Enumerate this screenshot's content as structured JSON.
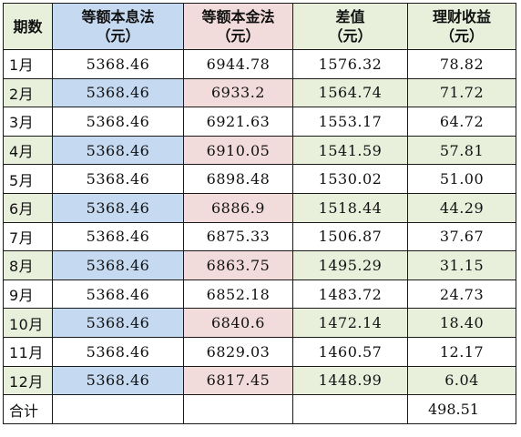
{
  "colors": {
    "col0_header": "#e8f0dc",
    "col1_header": "#c5d9f1",
    "col2_header": "#f2dcdb",
    "col3_header": "#e8f0dc",
    "col4_header": "#e8f0dc"
  },
  "table": {
    "headers": [
      {
        "line1": "期数",
        "line2": ""
      },
      {
        "line1": "等额本息法",
        "line2": "（元）"
      },
      {
        "line1": "等额本金法",
        "line2": "（元）"
      },
      {
        "line1": "差值",
        "line2": "（元）"
      },
      {
        "line1": "理财收益",
        "line2": "（元）"
      }
    ],
    "rows": [
      {
        "period": "1月",
        "equal_installment": "5368.46",
        "equal_principal": "6944.78",
        "difference": "1576.32",
        "income": "78.82"
      },
      {
        "period": "2月",
        "equal_installment": "5368.46",
        "equal_principal": "6933.2",
        "difference": "1564.74",
        "income": "71.72"
      },
      {
        "period": "3月",
        "equal_installment": "5368.46",
        "equal_principal": "6921.63",
        "difference": "1553.17",
        "income": "64.72"
      },
      {
        "period": "4月",
        "equal_installment": "5368.46",
        "equal_principal": "6910.05",
        "difference": "1541.59",
        "income": "57.81"
      },
      {
        "period": "5月",
        "equal_installment": "5368.46",
        "equal_principal": "6898.48",
        "difference": "1530.02",
        "income": "51.00"
      },
      {
        "period": "6月",
        "equal_installment": "5368.46",
        "equal_principal": "6886.9",
        "difference": "1518.44",
        "income": "44.29"
      },
      {
        "period": "7月",
        "equal_installment": "5368.46",
        "equal_principal": "6875.33",
        "difference": "1506.87",
        "income": "37.67"
      },
      {
        "period": "8月",
        "equal_installment": "5368.46",
        "equal_principal": "6863.75",
        "difference": "1495.29",
        "income": "31.15"
      },
      {
        "period": "9月",
        "equal_installment": "5368.46",
        "equal_principal": "6852.18",
        "difference": "1483.72",
        "income": "24.73"
      },
      {
        "period": "10月",
        "equal_installment": "5368.46",
        "equal_principal": "6840.6",
        "difference": "1472.14",
        "income": "18.40"
      },
      {
        "period": "11月",
        "equal_installment": "5368.46",
        "equal_principal": "6829.03",
        "difference": "1460.57",
        "income": "12.17"
      },
      {
        "period": "12月",
        "equal_installment": "5368.46",
        "equal_principal": "6817.45",
        "difference": "1448.99",
        "income": "6.04"
      }
    ],
    "total": {
      "label": "合计",
      "income": "498.51"
    }
  }
}
